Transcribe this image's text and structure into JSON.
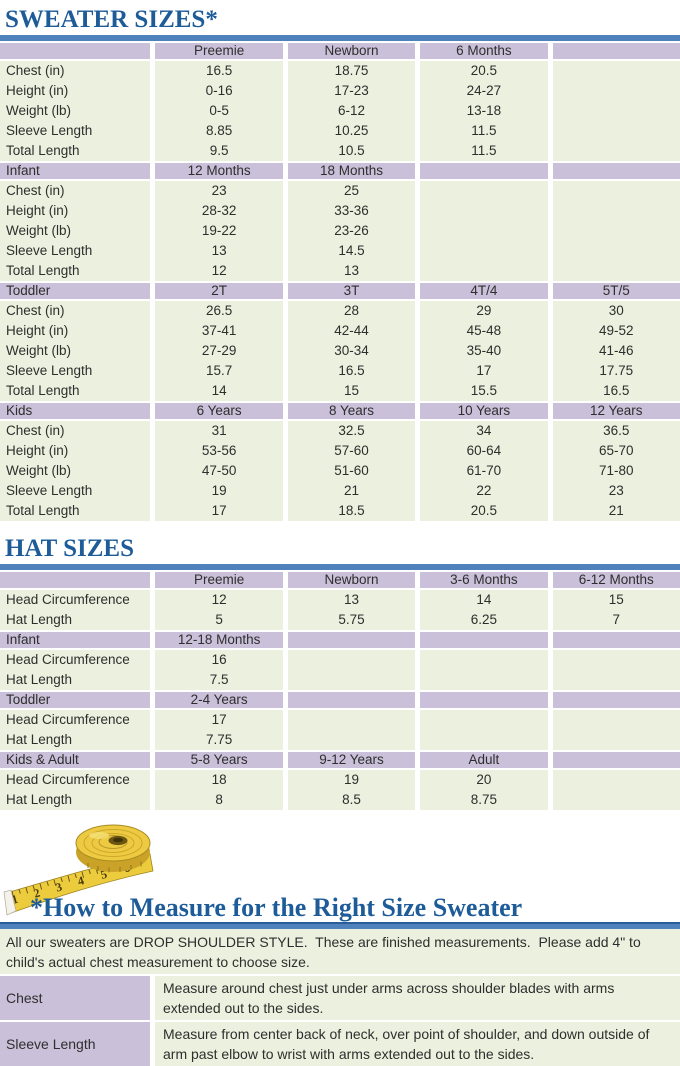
{
  "colors": {
    "title_blue": "#1e5c99",
    "accent_bar_blue": "#4f81bd",
    "header_purple": "#cbc0d9",
    "row_green": "#ebf1de",
    "tape_yellow": "#edca41"
  },
  "sweater": {
    "title": "SWEATER SIZES*",
    "sections": [
      {
        "header": [
          "",
          "Preemie",
          "Newborn",
          "6 Months",
          ""
        ],
        "rows": [
          {
            "label": "Chest (in)",
            "values": [
              "16.5",
              "18.75",
              "20.5",
              ""
            ]
          },
          {
            "label": "Height (in)",
            "values": [
              "0-16",
              "17-23",
              "24-27",
              ""
            ]
          },
          {
            "label": "Weight (lb)",
            "values": [
              "0-5",
              "6-12",
              "13-18",
              ""
            ]
          },
          {
            "label": "Sleeve Length",
            "values": [
              "8.85",
              "10.25",
              "11.5",
              ""
            ]
          },
          {
            "label": "Total Length",
            "values": [
              "9.5",
              "10.5",
              "11.5",
              ""
            ]
          }
        ]
      },
      {
        "header": [
          "Infant",
          "12 Months",
          "18 Months",
          "",
          ""
        ],
        "rows": [
          {
            "label": "Chest (in)",
            "values": [
              "23",
              "25",
              "",
              ""
            ]
          },
          {
            "label": "Height (in)",
            "values": [
              "28-32",
              "33-36",
              "",
              ""
            ]
          },
          {
            "label": "Weight (lb)",
            "values": [
              "19-22",
              "23-26",
              "",
              ""
            ]
          },
          {
            "label": "Sleeve Length",
            "values": [
              "13",
              "14.5",
              "",
              ""
            ]
          },
          {
            "label": "Total Length",
            "values": [
              "12",
              "13",
              "",
              ""
            ]
          }
        ]
      },
      {
        "header": [
          "Toddler",
          "2T",
          "3T",
          "4T/4",
          "5T/5"
        ],
        "rows": [
          {
            "label": "Chest (in)",
            "values": [
              "26.5",
              "28",
              "29",
              "30"
            ]
          },
          {
            "label": "Height (in)",
            "values": [
              "37-41",
              "42-44",
              "45-48",
              "49-52"
            ]
          },
          {
            "label": "Weight (lb)",
            "values": [
              "27-29",
              "30-34",
              "35-40",
              "41-46"
            ]
          },
          {
            "label": "Sleeve Length",
            "values": [
              "15.7",
              "16.5",
              "17",
              "17.75"
            ]
          },
          {
            "label": "Total Length",
            "values": [
              "14",
              "15",
              "15.5",
              "16.5"
            ]
          }
        ]
      },
      {
        "header": [
          "Kids",
          "6 Years",
          "8 Years",
          "10 Years",
          "12 Years"
        ],
        "rows": [
          {
            "label": "Chest (in)",
            "values": [
              "31",
              "32.5",
              "34",
              "36.5"
            ]
          },
          {
            "label": "Height (in)",
            "values": [
              "53-56",
              "57-60",
              "60-64",
              "65-70"
            ]
          },
          {
            "label": "Weight (lb)",
            "values": [
              "47-50",
              "51-60",
              "61-70",
              "71-80"
            ]
          },
          {
            "label": "Sleeve Length",
            "values": [
              "19",
              "21",
              "22",
              "23"
            ]
          },
          {
            "label": "Total Length",
            "values": [
              "17",
              "18.5",
              "20.5",
              "21"
            ]
          }
        ]
      }
    ]
  },
  "hat": {
    "title": "HAT SIZES",
    "sections": [
      {
        "header": [
          "",
          "Preemie",
          "Newborn",
          "3-6 Months",
          "6-12 Months"
        ],
        "rows": [
          {
            "label": "Head Circumference",
            "values": [
              "12",
              "13",
              "14",
              "15"
            ]
          },
          {
            "label": "Hat Length",
            "values": [
              "5",
              "5.75",
              "6.25",
              "7"
            ]
          }
        ]
      },
      {
        "header": [
          "Infant",
          "12-18 Months",
          "",
          "",
          ""
        ],
        "rows": [
          {
            "label": "Head Circumference",
            "values": [
              "16",
              "",
              "",
              ""
            ]
          },
          {
            "label": "Hat Length",
            "values": [
              "7.5",
              "",
              "",
              ""
            ]
          }
        ]
      },
      {
        "header": [
          "Toddler",
          "2-4 Years",
          "",
          "",
          ""
        ],
        "rows": [
          {
            "label": "Head Circumference",
            "values": [
              "17",
              "",
              "",
              ""
            ]
          },
          {
            "label": "Hat Length",
            "values": [
              "7.75",
              "",
              "",
              ""
            ]
          }
        ]
      },
      {
        "header": [
          "Kids & Adult",
          "5-8 Years",
          "9-12 Years",
          "Adult",
          ""
        ],
        "rows": [
          {
            "label": "Head Circumference",
            "values": [
              "18",
              "19",
              "20",
              ""
            ]
          },
          {
            "label": "Hat Length",
            "values": [
              "8",
              "8.5",
              "8.75",
              ""
            ]
          }
        ]
      }
    ]
  },
  "measure": {
    "title": "*How to Measure for the Right Size Sweater",
    "intro": "All our sweaters are DROP SHOULDER STYLE.  These are finished measurements.  Please add 4\" to child's actual chest measurement to choose size.",
    "rows": [
      {
        "label": "Chest",
        "text": "Measure around chest just under arms across shoulder blades with arms extended out to the sides."
      },
      {
        "label": "Sleeve Length",
        "text": "Measure from center back of neck, over point of shoulder, and down outside of arm past elbow to wrist with arms extended out to the sides."
      }
    ]
  },
  "tape": {
    "numbers": [
      "1",
      "2",
      "3",
      "4",
      "5",
      "6"
    ]
  }
}
